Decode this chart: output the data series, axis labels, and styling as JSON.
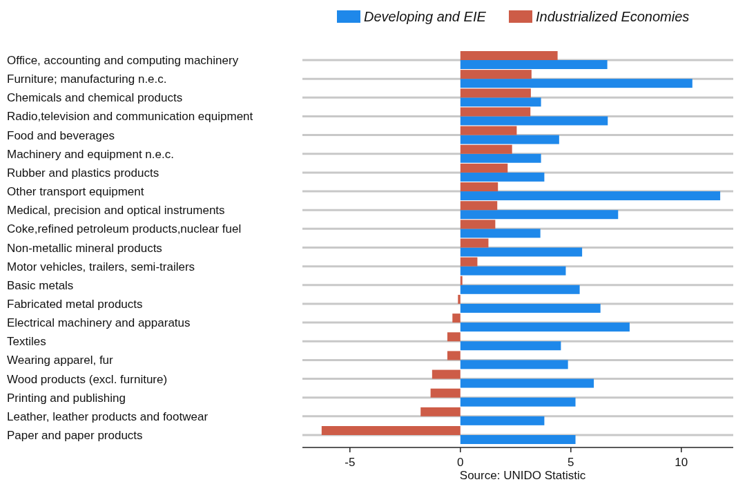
{
  "chart_data": {
    "type": "bar",
    "orientation": "horizontal",
    "categories": [
      "Office, accounting and computing machinery",
      "Furniture; manufacturing n.e.c.",
      "Chemicals and chemical products",
      "Radio,television and communication equipment",
      "Food and beverages",
      "Machinery and equipment n.e.c.",
      "Rubber and plastics products",
      "Other transport equipment",
      "Medical, precision and optical instruments",
      "Coke,refined petroleum products,nuclear fuel",
      "Non-metallic mineral products",
      "Motor vehicles, trailers, semi-trailers",
      "Basic metals",
      "Fabricated metal products",
      "Electrical machinery and apparatus",
      "Textiles",
      "Wearing apparel, fur",
      "Wood products (excl. furniture)",
      "Printing and publishing",
      "Leather, leather products and footwear",
      "Paper and paper products"
    ],
    "series": [
      {
        "name": "Developing and EIE",
        "color": "#1e88ea",
        "values": [
          6.65,
          10.5,
          3.65,
          6.67,
          4.47,
          3.65,
          3.8,
          11.76,
          7.14,
          3.62,
          5.51,
          4.77,
          5.4,
          6.34,
          7.66,
          4.55,
          4.87,
          6.04,
          5.21,
          3.8,
          5.21
        ]
      },
      {
        "name": "Industrialized Economies",
        "color": "#cd5c47",
        "values": [
          4.4,
          3.22,
          3.19,
          3.17,
          2.55,
          2.34,
          2.14,
          1.7,
          1.67,
          1.58,
          1.27,
          0.77,
          0.09,
          -0.11,
          -0.36,
          -0.59,
          -0.59,
          -1.28,
          -1.35,
          -1.8,
          -6.28
        ]
      }
    ],
    "xlim": [
      -7.15,
      12.35
    ],
    "xticks": [
      -5,
      0,
      5,
      10
    ],
    "grid": "y",
    "legend": "top right",
    "annotations": [
      "Source: UNIDO Statistic"
    ]
  }
}
